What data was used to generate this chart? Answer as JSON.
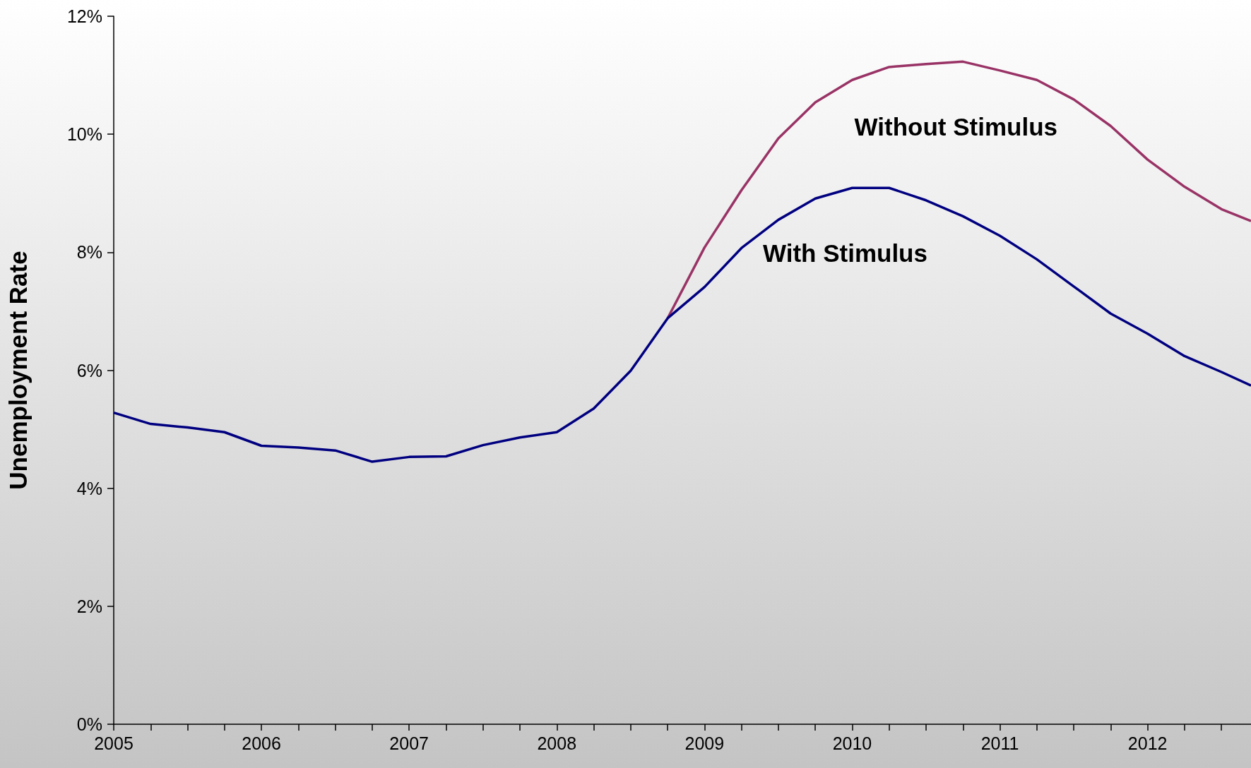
{
  "chart_data": {
    "type": "line",
    "ylabel": "Unemployment Rate",
    "x": [
      2005,
      2005.25,
      2005.5,
      2005.75,
      2006,
      2006.25,
      2006.5,
      2006.75,
      2007,
      2007.25,
      2007.5,
      2007.75,
      2008,
      2008.25,
      2008.5,
      2008.75,
      2009,
      2009.25,
      2009.5,
      2009.75,
      2010,
      2010.25,
      2010.5,
      2010.75,
      2011,
      2011.25,
      2011.5,
      2011.75,
      2012,
      2012.25,
      2012.5,
      2012.7
    ],
    "series": [
      {
        "name": "Without Stimulus",
        "color": "#993366",
        "values": [
          null,
          null,
          null,
          null,
          null,
          null,
          null,
          null,
          null,
          null,
          null,
          null,
          null,
          null,
          null,
          6.88,
          8.08,
          9.05,
          9.93,
          10.54,
          10.92,
          11.14,
          11.19,
          11.23,
          11.08,
          10.92,
          10.59,
          10.14,
          9.57,
          9.11,
          8.73,
          8.53
        ]
      },
      {
        "name": "With Stimulus",
        "color": "#000080",
        "values": [
          5.28,
          5.09,
          5.03,
          4.95,
          4.72,
          4.69,
          4.64,
          4.45,
          4.53,
          4.54,
          4.73,
          4.86,
          4.95,
          5.35,
          5.99,
          6.88,
          7.41,
          8.07,
          8.55,
          8.91,
          9.09,
          9.09,
          8.88,
          8.61,
          8.28,
          7.88,
          7.42,
          6.96,
          6.62,
          6.24,
          5.97,
          5.74
        ]
      }
    ],
    "xlim": [
      2005,
      2012.7
    ],
    "xticks": [
      2005,
      {
        "value": 2005.25,
        "label": null
      },
      {
        "value": 2005.5,
        "label": null
      },
      {
        "value": 2005.75,
        "label": null
      },
      2006,
      {
        "value": 2006.25,
        "label": null
      },
      {
        "value": 2006.5,
        "label": null
      },
      {
        "value": 2006.75,
        "label": null
      },
      2007,
      {
        "value": 2007.25,
        "label": null
      },
      {
        "value": 2007.5,
        "label": null
      },
      {
        "value": 2007.75,
        "label": null
      },
      2008,
      {
        "value": 2008.25,
        "label": null
      },
      {
        "value": 2008.5,
        "label": null
      },
      {
        "value": 2008.75,
        "label": null
      },
      2009,
      {
        "value": 2009.25,
        "label": null
      },
      {
        "value": 2009.5,
        "label": null
      },
      {
        "value": 2009.75,
        "label": null
      },
      2010,
      {
        "value": 2010.25,
        "label": null
      },
      {
        "value": 2010.5,
        "label": null
      },
      {
        "value": 2010.75,
        "label": null
      },
      2011,
      {
        "value": 2011.25,
        "label": null
      },
      {
        "value": 2011.5,
        "label": null
      },
      {
        "value": 2011.75,
        "label": null
      },
      2012,
      {
        "value": 2012.25,
        "label": null
      },
      {
        "value": 2012.5,
        "label": null
      }
    ],
    "ylim": [
      0,
      12
    ],
    "yticks": [
      {
        "value": 0,
        "label": "0%"
      },
      {
        "value": 2,
        "label": "2%"
      },
      {
        "value": 4,
        "label": "4%"
      },
      {
        "value": 6,
        "label": "6%"
      },
      {
        "value": 8,
        "label": "8%"
      },
      {
        "value": 10,
        "label": "10%"
      },
      {
        "value": 12,
        "label": "12%"
      }
    ],
    "grid": false,
    "marker": "none",
    "line_style": "solid"
  }
}
